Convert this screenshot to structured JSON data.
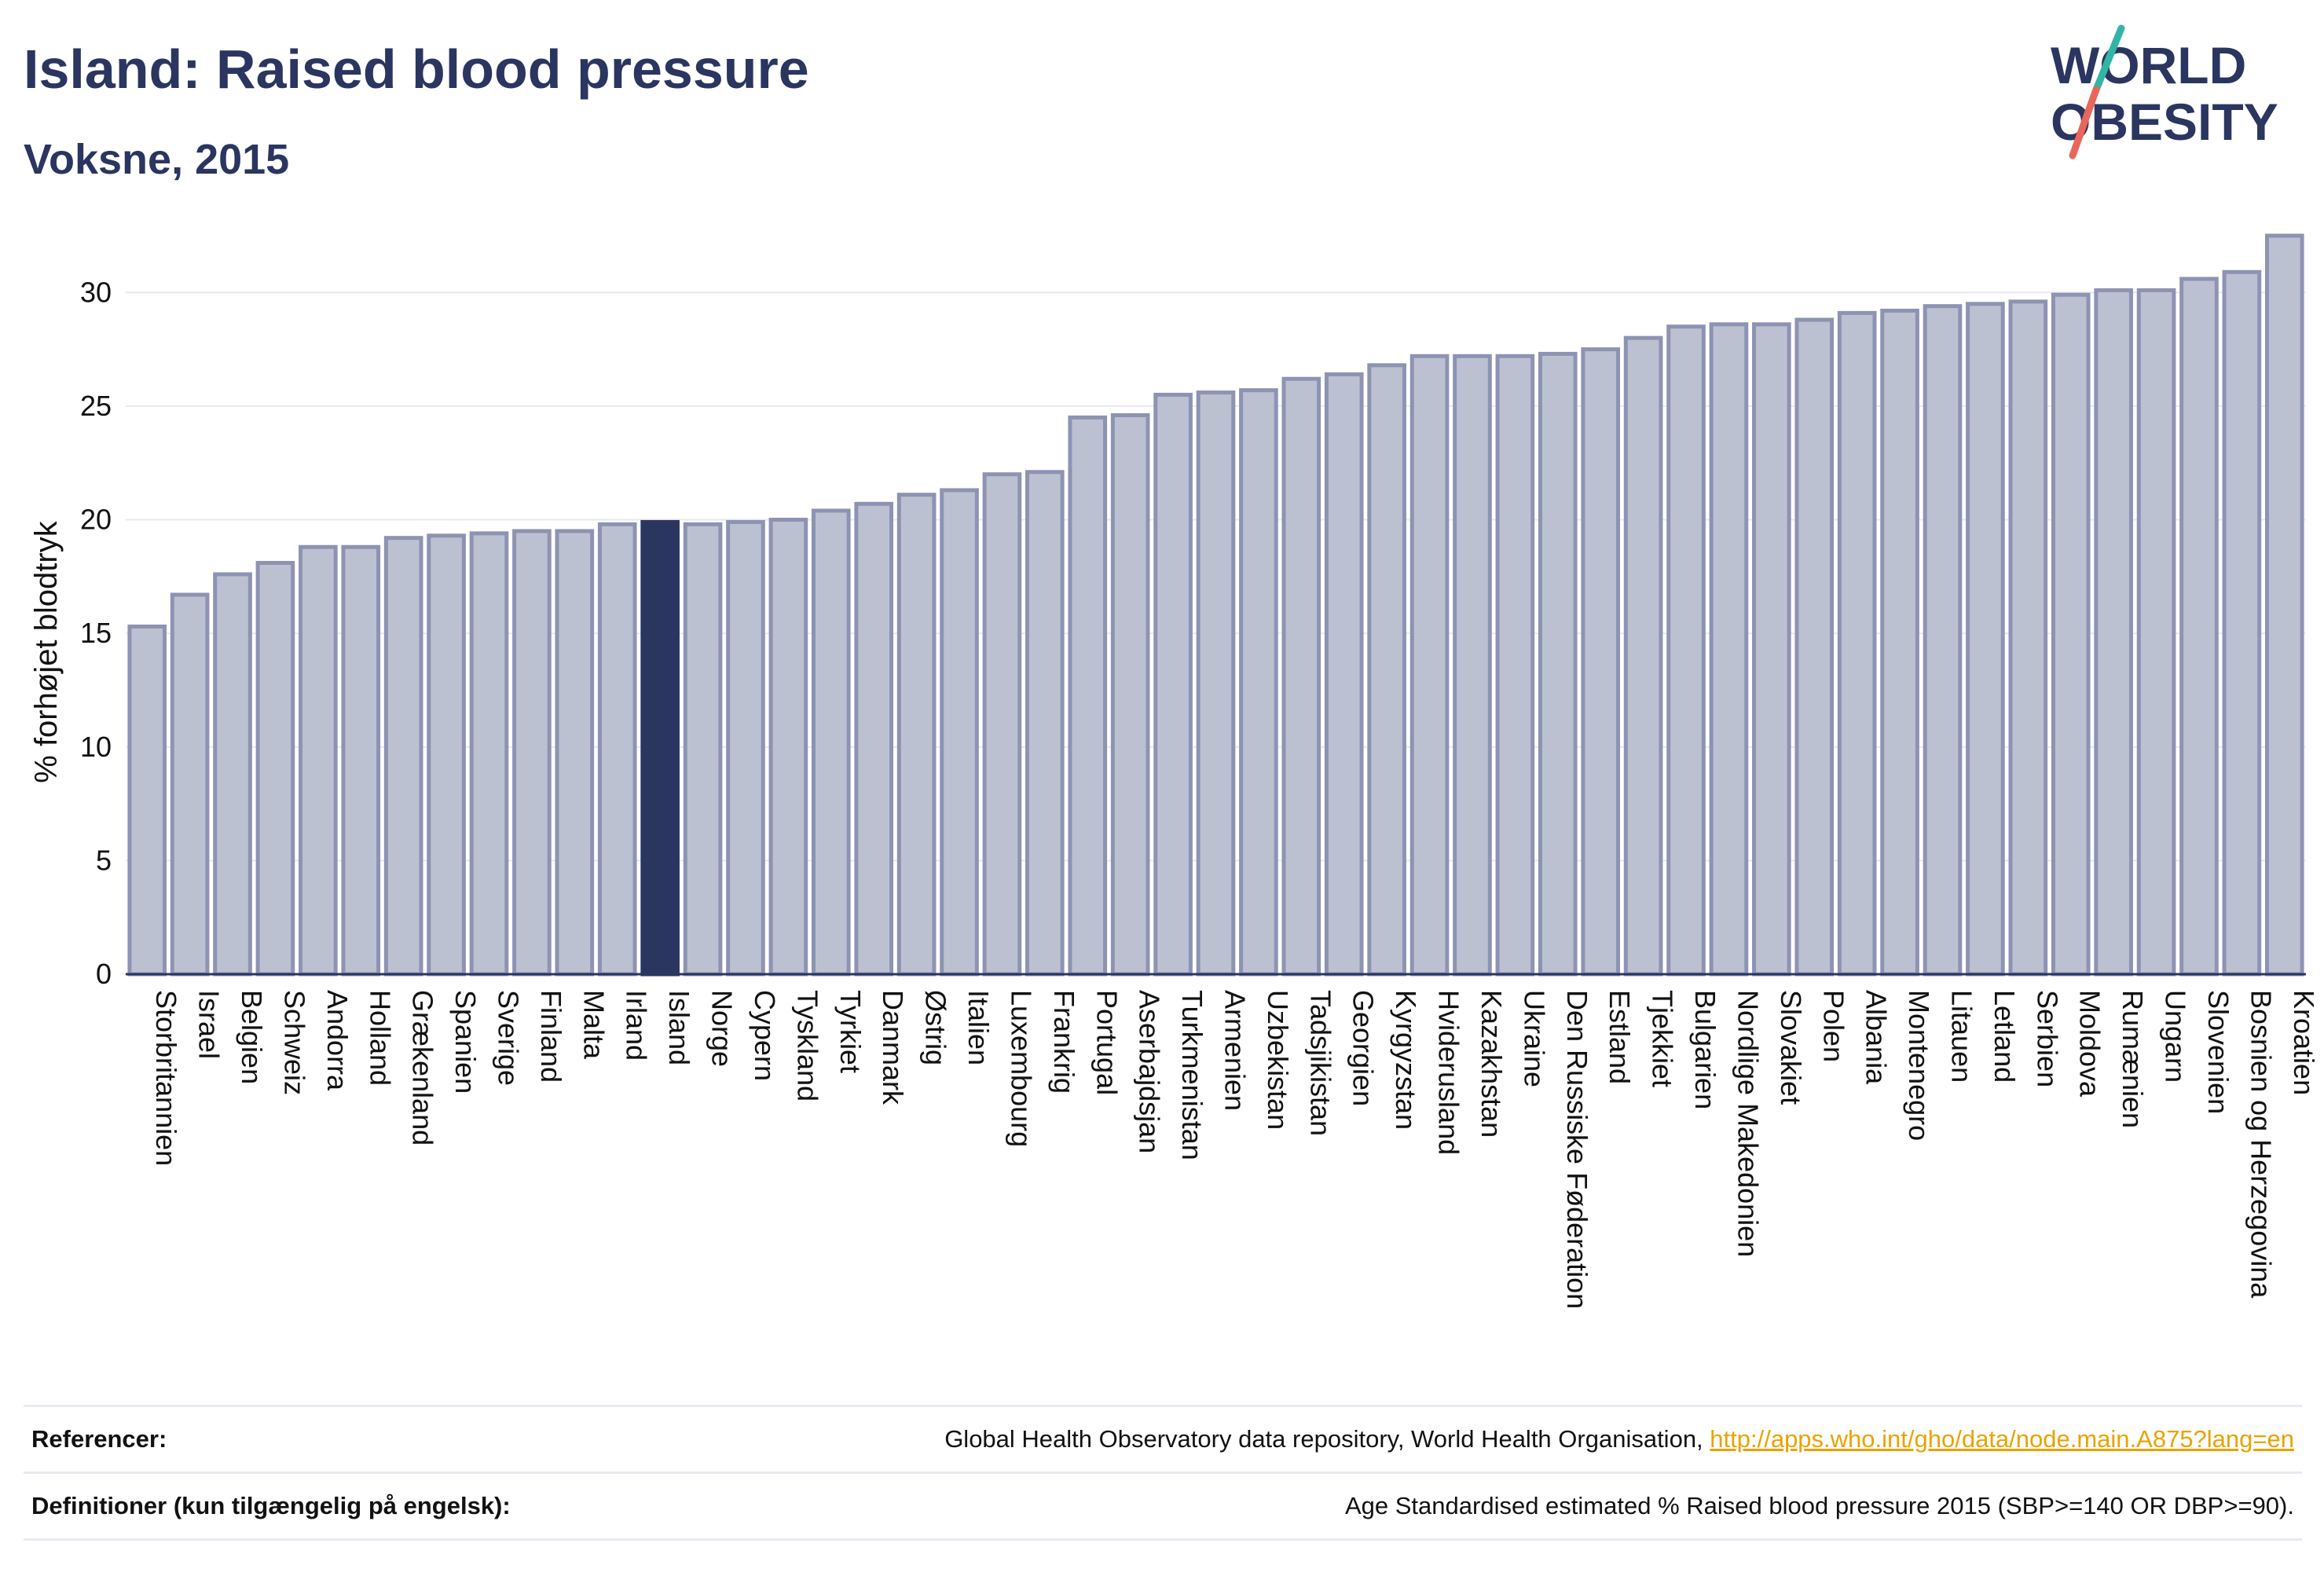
{
  "header": {
    "title": "Island: Raised blood pressure",
    "subtitle": "Voksne, 2015"
  },
  "logo": {
    "line1": "WORLD",
    "line2": "OBESITY"
  },
  "colors": {
    "bar": "#bcc1d1",
    "bar_border": "#8c93b3",
    "highlight": "#2a3560",
    "accent_teal": "#33b5a5",
    "accent_red": "#e8665a",
    "link": "#e8a300"
  },
  "chart_data": {
    "type": "bar",
    "ylabel": "% forhøjet blodtryk",
    "ylim": [
      0,
      32.5
    ],
    "yticks": [
      0,
      5,
      10,
      15,
      20,
      25,
      30
    ],
    "grid": true,
    "highlight": "Island",
    "categories": [
      "Storbritannien",
      "Israel",
      "Belgien",
      "Schweiz",
      "Andorra",
      "Holland",
      "Grækenland",
      "Spanien",
      "Sverige",
      "Finland",
      "Malta",
      "Irland",
      "Island",
      "Norge",
      "Cypern",
      "Tyskland",
      "Tyrkiet",
      "Danmark",
      "Østrig",
      "Italien",
      "Luxembourg",
      "Frankrig",
      "Portugal",
      "Aserbajdsjan",
      "Turkmenistan",
      "Armenien",
      "Uzbekistan",
      "Tadsjikistan",
      "Georgien",
      "Kyrgyzstan",
      "Hviderusland",
      "Kazakhstan",
      "Ukraine",
      "Den Russiske Føderation",
      "Estland",
      "Tjekkiet",
      "Bulgarien",
      "Nordlige Makedonien",
      "Slovakiet",
      "Polen",
      "Albania",
      "Montenegro",
      "Litauen",
      "Letland",
      "Serbien",
      "Moldova",
      "Rumænien",
      "Ungarn",
      "Slovenien",
      "Bosnien og Herzegovina",
      "Kroatien"
    ],
    "values": [
      15.3,
      16.7,
      17.6,
      18.1,
      18.8,
      18.8,
      19.2,
      19.3,
      19.4,
      19.5,
      19.5,
      19.8,
      19.9,
      19.8,
      19.9,
      20.0,
      20.4,
      20.7,
      21.1,
      21.3,
      22.0,
      22.1,
      24.5,
      24.6,
      25.5,
      25.6,
      25.7,
      26.2,
      26.4,
      26.8,
      27.2,
      27.2,
      27.2,
      27.3,
      27.5,
      28.0,
      28.5,
      28.6,
      28.6,
      28.8,
      29.1,
      29.2,
      29.4,
      29.5,
      29.6,
      29.9,
      30.1,
      30.1,
      30.6,
      30.9,
      32.5
    ]
  },
  "footer": {
    "references_label": "Referencer:",
    "references_text": "Global Health Observatory data repository, World Health Organisation, ",
    "references_link": "http://apps.who.int/gho/data/node.main.A875?lang=en",
    "definitions_label": "Definitioner (kun tilgængelig på engelsk):",
    "definitions_text": "Age Standardised estimated % Raised blood pressure 2015 (SBP>=140 OR DBP>=90)."
  }
}
